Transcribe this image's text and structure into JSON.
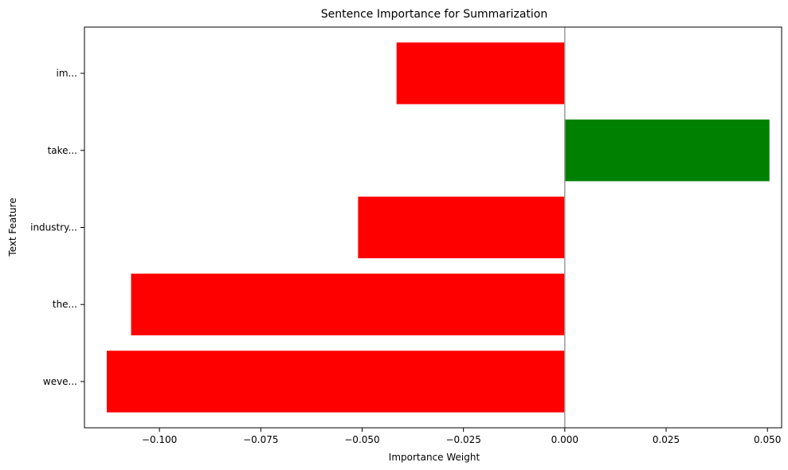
{
  "chart_data": {
    "type": "bar",
    "orientation": "horizontal",
    "title": "Sentence Importance for Summarization",
    "xlabel": "Importance Weight",
    "ylabel": "Text Feature",
    "categories": [
      "weve...",
      "the...",
      "industry...",
      "take...",
      "im..."
    ],
    "values": [
      -0.113,
      -0.107,
      -0.051,
      0.0505,
      -0.0415
    ],
    "xlim": [
      -0.1185,
      0.0535
    ],
    "xticks": [
      -0.1,
      -0.075,
      -0.05,
      -0.025,
      0.0,
      0.025,
      0.05
    ],
    "xtick_labels": [
      "−0.100",
      "−0.075",
      "−0.050",
      "−0.025",
      "0.000",
      "0.025",
      "0.050"
    ],
    "colors": {
      "positive": "#008000",
      "negative": "#ff0000",
      "zero_line": "#999999"
    },
    "grid": false,
    "legend": "none"
  }
}
